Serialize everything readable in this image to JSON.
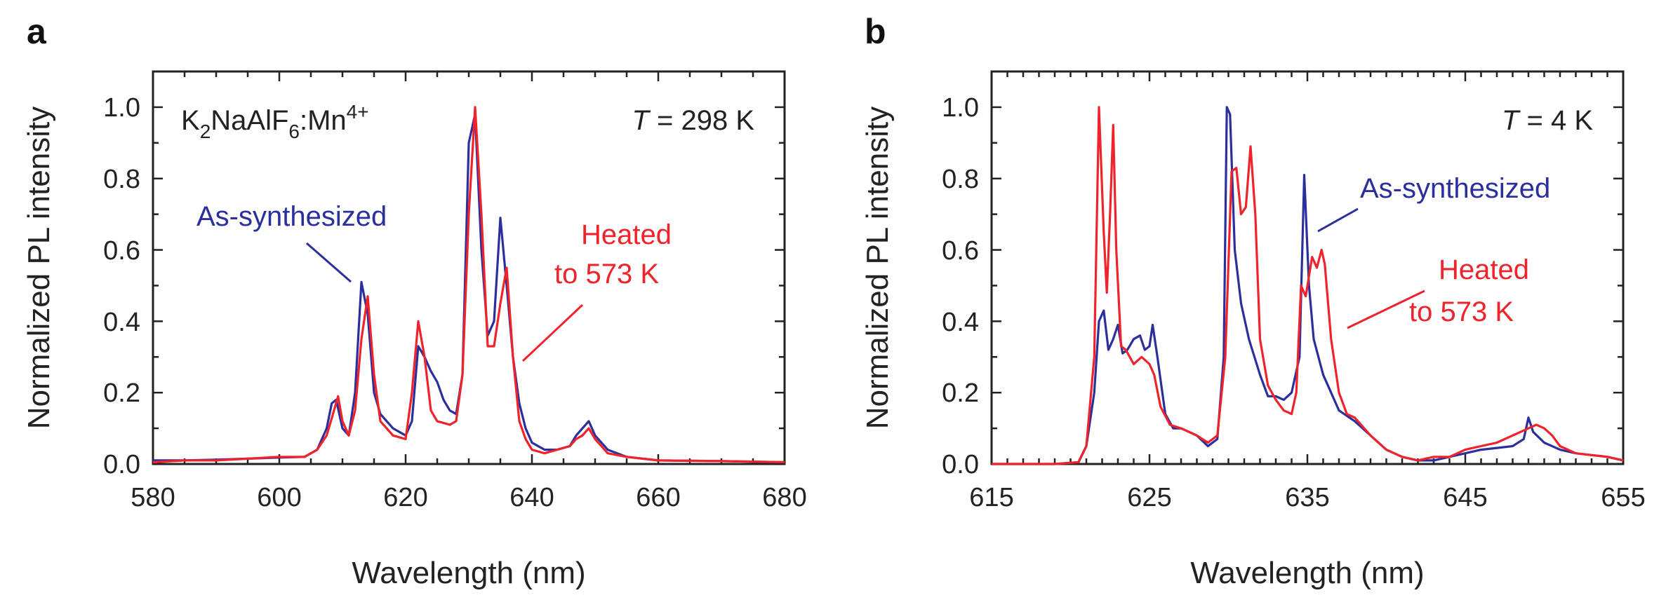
{
  "colors": {
    "blue": "#2b2f9e",
    "red": "#f0232b",
    "axis": "#222222"
  },
  "chart_data": [
    {
      "type": "line",
      "panel_label": "a",
      "xlabel": "Wavelength (nm)",
      "ylabel": "Normalized PL intensity",
      "xlim": [
        580,
        680
      ],
      "ylim": [
        0,
        1.1
      ],
      "xticks": [
        "580",
        "600",
        "620",
        "640",
        "660",
        "680"
      ],
      "yticks": [
        "0.0",
        "0.2",
        "0.4",
        "0.6",
        "0.8",
        "1.0"
      ],
      "annotations": {
        "compound": "K2NaAlF6:Mn4+",
        "compound_parts": {
          "k": "K",
          "k_sub": "2",
          "mid": "NaAlF",
          "f_sub": "6",
          "mn": ":Mn",
          "mn_sup": "4+"
        },
        "temperature": {
          "var": "T",
          "rest": " = 298 K"
        },
        "blue_label": "As-synthesized",
        "red_label_line1": "Heated",
        "red_label_line2": "to 573 K"
      },
      "series": [
        {
          "name": "As-synthesized",
          "color": "blue",
          "points": [
            [
              580,
              0.01
            ],
            [
              585,
              0.01
            ],
            [
              590,
              0.012
            ],
            [
              595,
              0.015
            ],
            [
              600,
              0.018
            ],
            [
              604,
              0.02
            ],
            [
              606,
              0.04
            ],
            [
              607.5,
              0.1
            ],
            [
              608.3,
              0.17
            ],
            [
              609,
              0.18
            ],
            [
              610,
              0.1
            ],
            [
              611,
              0.08
            ],
            [
              612,
              0.2
            ],
            [
              613,
              0.51
            ],
            [
              614,
              0.42
            ],
            [
              615,
              0.2
            ],
            [
              616,
              0.14
            ],
            [
              618,
              0.1
            ],
            [
              620,
              0.08
            ],
            [
              621,
              0.12
            ],
            [
              622,
              0.33
            ],
            [
              623,
              0.3
            ],
            [
              624,
              0.26
            ],
            [
              625,
              0.23
            ],
            [
              626,
              0.18
            ],
            [
              627,
              0.15
            ],
            [
              628,
              0.14
            ],
            [
              629,
              0.25
            ],
            [
              630,
              0.9
            ],
            [
              631,
              0.98
            ],
            [
              632,
              0.6
            ],
            [
              633,
              0.36
            ],
            [
              634,
              0.4
            ],
            [
              635,
              0.69
            ],
            [
              636,
              0.5
            ],
            [
              637,
              0.3
            ],
            [
              638,
              0.17
            ],
            [
              639,
              0.1
            ],
            [
              640,
              0.06
            ],
            [
              642,
              0.04
            ],
            [
              644,
              0.04
            ],
            [
              646,
              0.05
            ],
            [
              647,
              0.08
            ],
            [
              648,
              0.1
            ],
            [
              649,
              0.12
            ],
            [
              650,
              0.08
            ],
            [
              652,
              0.04
            ],
            [
              655,
              0.02
            ],
            [
              660,
              0.01
            ],
            [
              670,
              0.008
            ],
            [
              680,
              0.005
            ]
          ]
        },
        {
          "name": "Heated to 573 K",
          "color": "red",
          "points": [
            [
              580,
              0.005
            ],
            [
              585,
              0.01
            ],
            [
              590,
              0.01
            ],
            [
              595,
              0.015
            ],
            [
              600,
              0.02
            ],
            [
              604,
              0.02
            ],
            [
              606,
              0.04
            ],
            [
              607.5,
              0.08
            ],
            [
              608.5,
              0.14
            ],
            [
              609.3,
              0.19
            ],
            [
              610,
              0.12
            ],
            [
              611,
              0.08
            ],
            [
              612,
              0.15
            ],
            [
              613,
              0.35
            ],
            [
              614,
              0.47
            ],
            [
              615,
              0.25
            ],
            [
              616,
              0.12
            ],
            [
              618,
              0.08
            ],
            [
              620,
              0.07
            ],
            [
              621,
              0.2
            ],
            [
              622,
              0.4
            ],
            [
              623,
              0.3
            ],
            [
              624,
              0.15
            ],
            [
              625,
              0.12
            ],
            [
              627,
              0.11
            ],
            [
              628,
              0.12
            ],
            [
              629,
              0.25
            ],
            [
              630,
              0.7
            ],
            [
              631,
              1.0
            ],
            [
              632,
              0.7
            ],
            [
              633,
              0.33
            ],
            [
              634,
              0.33
            ],
            [
              635,
              0.45
            ],
            [
              636,
              0.55
            ],
            [
              637,
              0.3
            ],
            [
              638,
              0.12
            ],
            [
              639,
              0.07
            ],
            [
              640,
              0.04
            ],
            [
              642,
              0.03
            ],
            [
              644,
              0.04
            ],
            [
              646,
              0.05
            ],
            [
              647,
              0.07
            ],
            [
              648,
              0.08
            ],
            [
              649,
              0.1
            ],
            [
              650,
              0.07
            ],
            [
              652,
              0.03
            ],
            [
              655,
              0.02
            ],
            [
              660,
              0.01
            ],
            [
              670,
              0.008
            ],
            [
              680,
              0.005
            ]
          ]
        }
      ]
    },
    {
      "type": "line",
      "panel_label": "b",
      "xlabel": "Wavelength (nm)",
      "ylabel": "Normalized PL intensity",
      "xlim": [
        615,
        655
      ],
      "ylim": [
        0,
        1.1
      ],
      "xticks": [
        "615",
        "625",
        "635",
        "645",
        "655"
      ],
      "yticks": [
        "0.0",
        "0.2",
        "0.4",
        "0.6",
        "0.8",
        "1.0"
      ],
      "annotations": {
        "temperature": {
          "var": "T",
          "rest": " = 4 K"
        },
        "blue_label": "As-synthesized",
        "red_label_line1": "Heated",
        "red_label_line2": "to 573 K"
      },
      "series": [
        {
          "name": "As-synthesized",
          "color": "blue",
          "points": [
            [
              615,
              0
            ],
            [
              619,
              0
            ],
            [
              620.5,
              0.005
            ],
            [
              621,
              0.05
            ],
            [
              621.5,
              0.2
            ],
            [
              621.8,
              0.4
            ],
            [
              622.1,
              0.43
            ],
            [
              622.4,
              0.32
            ],
            [
              622.7,
              0.35
            ],
            [
              623,
              0.39
            ],
            [
              623.3,
              0.31
            ],
            [
              623.6,
              0.32
            ],
            [
              624,
              0.35
            ],
            [
              624.4,
              0.36
            ],
            [
              624.7,
              0.32
            ],
            [
              625,
              0.33
            ],
            [
              625.2,
              0.39
            ],
            [
              625.5,
              0.3
            ],
            [
              626,
              0.14
            ],
            [
              626.5,
              0.1
            ],
            [
              627,
              0.1
            ],
            [
              628,
              0.08
            ],
            [
              628.7,
              0.05
            ],
            [
              629.3,
              0.07
            ],
            [
              629.7,
              0.3
            ],
            [
              629.9,
              1.0
            ],
            [
              630.1,
              0.98
            ],
            [
              630.4,
              0.6
            ],
            [
              630.8,
              0.45
            ],
            [
              631.3,
              0.35
            ],
            [
              632,
              0.25
            ],
            [
              632.5,
              0.19
            ],
            [
              633,
              0.19
            ],
            [
              633.5,
              0.18
            ],
            [
              634,
              0.2
            ],
            [
              634.5,
              0.3
            ],
            [
              634.8,
              0.81
            ],
            [
              635.1,
              0.5
            ],
            [
              635.4,
              0.35
            ],
            [
              636,
              0.25
            ],
            [
              636.5,
              0.2
            ],
            [
              637,
              0.15
            ],
            [
              638,
              0.12
            ],
            [
              639,
              0.08
            ],
            [
              640,
              0.04
            ],
            [
              641,
              0.02
            ],
            [
              642,
              0.01
            ],
            [
              643,
              0.01
            ],
            [
              644,
              0.02
            ],
            [
              645,
              0.03
            ],
            [
              646,
              0.04
            ],
            [
              647,
              0.045
            ],
            [
              648,
              0.05
            ],
            [
              648.7,
              0.07
            ],
            [
              649,
              0.13
            ],
            [
              649.3,
              0.09
            ],
            [
              650,
              0.06
            ],
            [
              651,
              0.04
            ],
            [
              652,
              0.03
            ],
            [
              653,
              0.025
            ],
            [
              654,
              0.02
            ],
            [
              655,
              0.01
            ]
          ]
        },
        {
          "name": "Heated to 573 K",
          "color": "red",
          "points": [
            [
              615,
              0
            ],
            [
              619,
              0
            ],
            [
              620.5,
              0.005
            ],
            [
              621,
              0.05
            ],
            [
              621.5,
              0.3
            ],
            [
              621.8,
              1.0
            ],
            [
              622.1,
              0.65
            ],
            [
              622.3,
              0.48
            ],
            [
              622.5,
              0.7
            ],
            [
              622.7,
              0.95
            ],
            [
              622.9,
              0.6
            ],
            [
              623.2,
              0.33
            ],
            [
              623.5,
              0.32
            ],
            [
              624,
              0.28
            ],
            [
              624.5,
              0.3
            ],
            [
              625,
              0.28
            ],
            [
              625.3,
              0.25
            ],
            [
              625.7,
              0.16
            ],
            [
              626.3,
              0.11
            ],
            [
              627,
              0.1
            ],
            [
              628,
              0.08
            ],
            [
              628.7,
              0.06
            ],
            [
              629.3,
              0.08
            ],
            [
              629.8,
              0.3
            ],
            [
              630.2,
              0.82
            ],
            [
              630.5,
              0.83
            ],
            [
              630.8,
              0.7
            ],
            [
              631.1,
              0.72
            ],
            [
              631.4,
              0.89
            ],
            [
              631.7,
              0.7
            ],
            [
              632,
              0.35
            ],
            [
              632.5,
              0.22
            ],
            [
              633,
              0.18
            ],
            [
              633.5,
              0.15
            ],
            [
              634,
              0.14
            ],
            [
              634.3,
              0.2
            ],
            [
              634.6,
              0.5
            ],
            [
              634.9,
              0.47
            ],
            [
              635.3,
              0.58
            ],
            [
              635.6,
              0.55
            ],
            [
              635.9,
              0.6
            ],
            [
              636.1,
              0.56
            ],
            [
              636.5,
              0.35
            ],
            [
              637,
              0.2
            ],
            [
              637.5,
              0.14
            ],
            [
              638,
              0.13
            ],
            [
              639,
              0.08
            ],
            [
              640,
              0.04
            ],
            [
              641,
              0.02
            ],
            [
              642,
              0.01
            ],
            [
              643,
              0.02
            ],
            [
              644,
              0.02
            ],
            [
              645,
              0.04
            ],
            [
              646,
              0.05
            ],
            [
              647,
              0.06
            ],
            [
              648,
              0.08
            ],
            [
              649,
              0.1
            ],
            [
              649.5,
              0.11
            ],
            [
              650,
              0.1
            ],
            [
              650.5,
              0.08
            ],
            [
              651,
              0.05
            ],
            [
              652,
              0.03
            ],
            [
              653,
              0.025
            ],
            [
              654,
              0.02
            ],
            [
              655,
              0.01
            ]
          ]
        }
      ]
    }
  ]
}
